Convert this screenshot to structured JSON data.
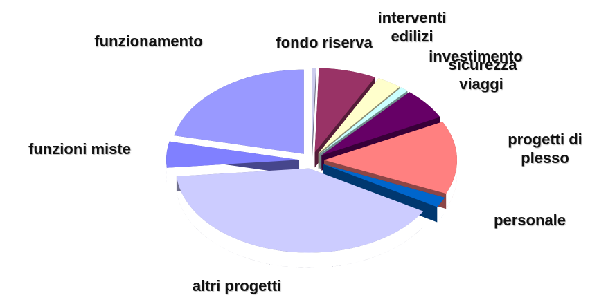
{
  "chart_data": {
    "type": "pie",
    "categories": [
      "fondo riserva",
      "interventi edilizi",
      "investimento",
      "sicurezza",
      "viaggi",
      "progetti di plesso",
      "personale",
      "altri progetti",
      "funzioni miste",
      "funzionamento"
    ],
    "values": [
      0.5,
      7,
      3,
      1,
      6,
      14,
      2,
      40,
      5,
      21.5
    ],
    "colors": [
      "#ccccee",
      "#993366",
      "#ffffcc",
      "#ccffff",
      "#660066",
      "#ff8080",
      "#0066cc",
      "#ccccff",
      "#8080ff",
      "#9999ff"
    ]
  }
}
